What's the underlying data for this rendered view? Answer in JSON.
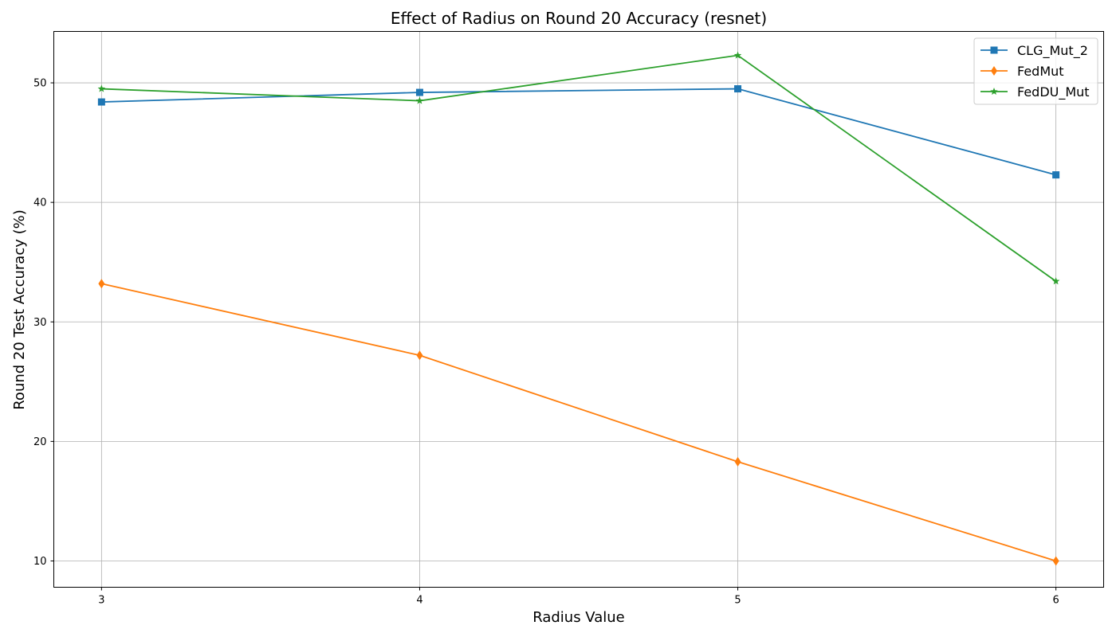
{
  "chart_data": {
    "type": "line",
    "title": "Effect of Radius on Round 20 Accuracy (resnet)",
    "xlabel": "Radius Value",
    "ylabel": "Round 20 Test Accuracy (%)",
    "x": [
      3,
      4,
      5,
      6
    ],
    "xlim": [
      2.85,
      6.15
    ],
    "ylim": [
      7.8,
      54.3
    ],
    "xticks": [
      "3",
      "4",
      "5",
      "6"
    ],
    "yticks": [
      "10",
      "20",
      "30",
      "40",
      "50"
    ],
    "grid": true,
    "legend_position": "top-right",
    "series": [
      {
        "name": "CLG_Mut_2",
        "values": [
          48.4,
          49.2,
          49.5,
          42.3
        ],
        "color": "#1f77b4",
        "marker": "square"
      },
      {
        "name": "FedMut",
        "values": [
          33.2,
          27.2,
          18.3,
          10.0
        ],
        "color": "#ff7f0e",
        "marker": "diamond"
      },
      {
        "name": "FedDU_Mut",
        "values": [
          49.5,
          48.5,
          52.3,
          33.4
        ],
        "color": "#2ca02c",
        "marker": "star"
      }
    ]
  }
}
